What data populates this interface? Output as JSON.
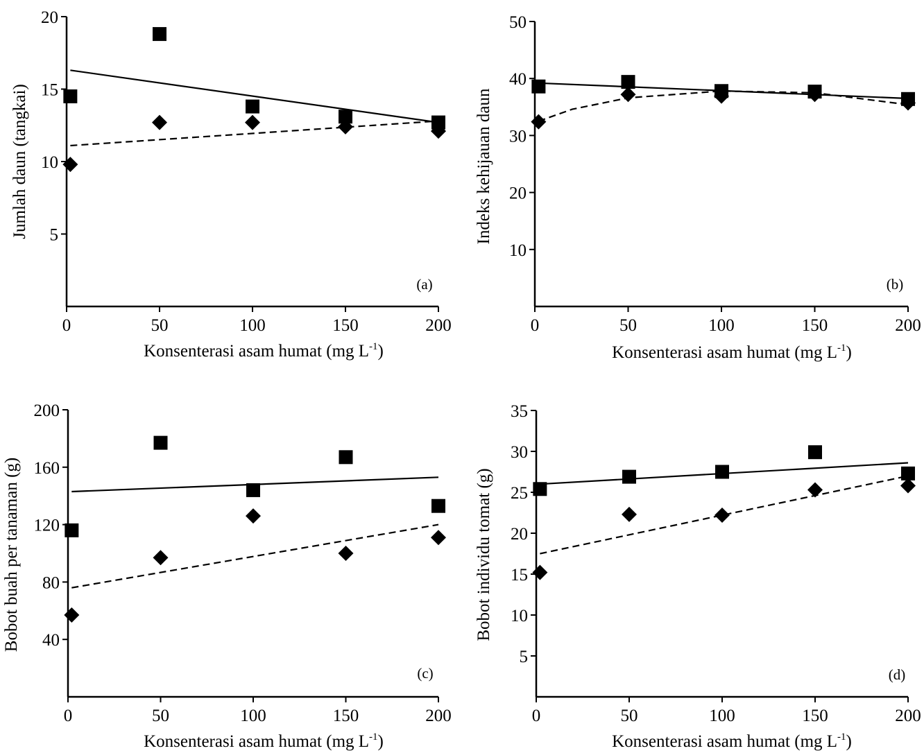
{
  "chart_data": [
    {
      "type": "scatter",
      "panel_label": "(a)",
      "xlabel": "Konsenterasi asam humat (mg L",
      "xlabel_sup": "-1",
      "xlabel_end": ")",
      "ylabel": "Jumlah daun (tangkai)",
      "xlim": [
        0,
        200
      ],
      "ylim": [
        0,
        20
      ],
      "xticks": [
        0,
        50,
        100,
        150,
        200
      ],
      "yticks": [
        5,
        10,
        15,
        20
      ],
      "series": [
        {
          "marker": "square",
          "line": "solid",
          "points": [
            [
              2,
              14.5
            ],
            [
              50,
              18.8
            ],
            [
              100,
              13.8
            ],
            [
              150,
              13.1
            ],
            [
              200,
              12.7
            ]
          ],
          "trend": [
            [
              2,
              16.3
            ],
            [
              200,
              12.7
            ]
          ]
        },
        {
          "marker": "diamond",
          "line": "dashed",
          "points": [
            [
              2,
              9.8
            ],
            [
              50,
              12.7
            ],
            [
              100,
              12.7
            ],
            [
              150,
              12.4
            ],
            [
              200,
              12.1
            ]
          ],
          "trend": [
            [
              2,
              11.1
            ],
            [
              200,
              12.8
            ]
          ]
        }
      ]
    },
    {
      "type": "scatter",
      "panel_label": "(b)",
      "xlabel": "Konsenterasi asam humat (mg L",
      "xlabel_sup": "-1",
      "xlabel_end": ")",
      "ylabel": "Indeks kehijauan daun",
      "xlim": [
        0,
        200
      ],
      "ylim": [
        0,
        50
      ],
      "xticks": [
        0,
        50,
        100,
        150,
        200
      ],
      "yticks": [
        10,
        20,
        30,
        40,
        50
      ],
      "series": [
        {
          "marker": "square",
          "line": "solid",
          "points": [
            [
              2,
              38.6
            ],
            [
              50,
              39.4
            ],
            [
              100,
              37.8
            ],
            [
              150,
              37.7
            ],
            [
              200,
              36.4
            ]
          ],
          "trend": [
            [
              2,
              39.2
            ],
            [
              200,
              36.5
            ]
          ]
        },
        {
          "marker": "diamond",
          "line": "dashed",
          "points": [
            [
              2,
              32.4
            ],
            [
              50,
              37.2
            ],
            [
              100,
              36.9
            ],
            [
              150,
              37.2
            ],
            [
              200,
              35.7
            ]
          ],
          "trend": [
            [
              2,
              32.5
            ],
            [
              20,
              34.6
            ],
            [
              50,
              36.6
            ],
            [
              100,
              37.8
            ],
            [
              150,
              37.5
            ],
            [
              200,
              35.4
            ]
          ]
        }
      ]
    },
    {
      "type": "scatter",
      "panel_label": "(c)",
      "xlabel": "Konsenterasi asam humat (mg L",
      "xlabel_sup": "-1",
      "xlabel_end": ")",
      "ylabel": "Bobot buah per tanaman (g)",
      "xlim": [
        0,
        200
      ],
      "ylim": [
        0,
        200
      ],
      "xticks": [
        0,
        50,
        100,
        150,
        200
      ],
      "yticks": [
        40,
        80,
        120,
        160,
        200
      ],
      "series": [
        {
          "marker": "square",
          "line": "solid",
          "points": [
            [
              2,
              116
            ],
            [
              50,
              177
            ],
            [
              100,
              144
            ],
            [
              150,
              167
            ],
            [
              200,
              133
            ]
          ],
          "trend": [
            [
              2,
              143
            ],
            [
              200,
              153
            ]
          ]
        },
        {
          "marker": "diamond",
          "line": "dashed",
          "points": [
            [
              2,
              57
            ],
            [
              50,
              97
            ],
            [
              100,
              126
            ],
            [
              150,
              100
            ],
            [
              200,
              111
            ]
          ],
          "trend": [
            [
              2,
              76
            ],
            [
              200,
              120
            ]
          ]
        }
      ]
    },
    {
      "type": "scatter",
      "panel_label": "(d)",
      "xlabel": "Konsenterasi asam humat (mg L",
      "xlabel_sup": "-1",
      "xlabel_end": ")",
      "ylabel": "Bobot individu tomat (g)",
      "xlim": [
        0,
        200
      ],
      "ylim": [
        0,
        35
      ],
      "xticks": [
        0,
        50,
        100,
        150,
        200
      ],
      "yticks": [
        5,
        10,
        15,
        20,
        25,
        30,
        35
      ],
      "series": [
        {
          "marker": "square",
          "line": "solid",
          "points": [
            [
              2,
              25.4
            ],
            [
              50,
              26.9
            ],
            [
              100,
              27.5
            ],
            [
              150,
              29.9
            ],
            [
              200,
              27.3
            ]
          ],
          "trend": [
            [
              2,
              26.0
            ],
            [
              200,
              28.6
            ]
          ]
        },
        {
          "marker": "diamond",
          "line": "dashed",
          "points": [
            [
              2,
              15.2
            ],
            [
              50,
              22.3
            ],
            [
              100,
              22.2
            ],
            [
              150,
              25.3
            ],
            [
              200,
              25.8
            ]
          ],
          "trend": [
            [
              2,
              17.5
            ],
            [
              200,
              27.0
            ]
          ]
        }
      ]
    }
  ]
}
